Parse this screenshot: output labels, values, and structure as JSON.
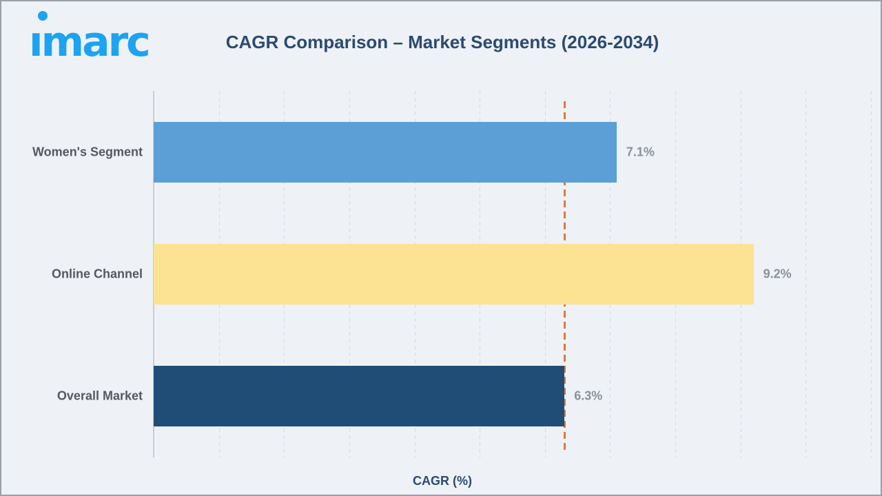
{
  "logo": {
    "text": "imarc",
    "color": "#1ca3f2"
  },
  "title": "CAGR Comparison – Market Segments (2026-2034)",
  "chart_data": {
    "type": "bar",
    "orientation": "horizontal",
    "title": "CAGR Comparison – Market Segments (2026-2034)",
    "categories": [
      "Women's Segment",
      "Online Channel",
      "Overall Market"
    ],
    "values": [
      7.1,
      9.2,
      6.3
    ],
    "value_labels": [
      "7.1%",
      "9.2%",
      "6.3%"
    ],
    "bar_colors": [
      "#5b9fd6",
      "#fce394",
      "#1f4d76"
    ],
    "xlabel": "CAGR (%)",
    "xlim": [
      0,
      11
    ],
    "grid": true,
    "grid_interval": 1,
    "legend": "none",
    "reference_line": {
      "value": 6.3,
      "color": "#e0793b",
      "style": "dashed"
    }
  },
  "colors": {
    "background": "#eef1f6",
    "frame_border": "#9aa0a8",
    "title_text": "#2c4a71",
    "category_label_text": "#55595f",
    "value_label_text": "#8b9199",
    "gridline": "#d5dae1",
    "axis_line": "#c8cdd4",
    "reference_line": "#e0793b",
    "logo_blue": "#1ca3f2"
  }
}
